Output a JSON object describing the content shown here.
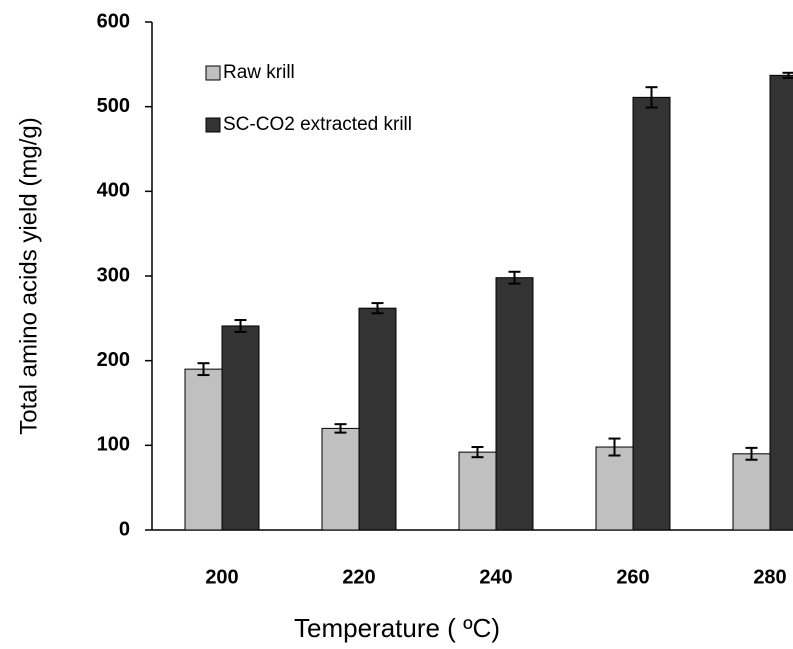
{
  "chart_data": {
    "type": "bar",
    "xlabel": "Temperature ( ºC)",
    "ylabel": "Total amino acids yield (mg/g)",
    "categories": [
      "200",
      "220",
      "240",
      "260",
      "280"
    ],
    "series": [
      {
        "name": "Raw krill",
        "color": "#c0c0c0",
        "values": [
          190,
          120,
          92,
          98,
          90
        ],
        "errors": [
          7,
          5,
          6,
          10,
          7
        ]
      },
      {
        "name": "SC-CO2 extracted krill",
        "color": "#333333",
        "values": [
          241,
          262,
          298,
          511,
          537
        ],
        "errors": [
          7,
          6,
          7,
          12,
          3
        ]
      }
    ],
    "ylim": [
      0,
      600
    ],
    "yticks": [
      0,
      100,
      200,
      300,
      400,
      500,
      600
    ],
    "grid": false,
    "legend": "upper left"
  }
}
